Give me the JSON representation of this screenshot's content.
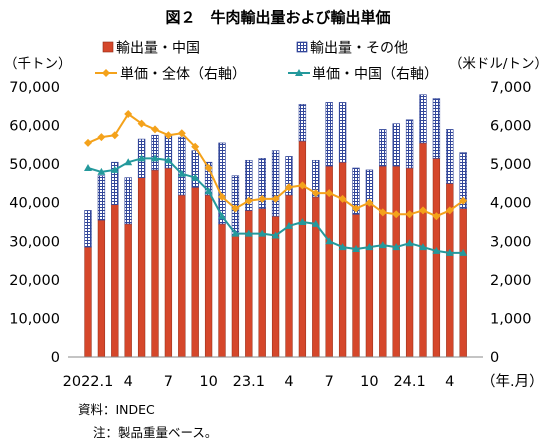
{
  "chart_data": {
    "type": "bar",
    "stacked": true,
    "title": "図２　牛肉輸出量および輸出単価",
    "categories": [
      "2022.1",
      "2022.2",
      "2022.3",
      "2022.4",
      "2022.5",
      "2022.6",
      "2022.7",
      "2022.8",
      "2022.9",
      "2022.10",
      "2022.11",
      "2022.12",
      "2023.1",
      "2023.2",
      "2023.3",
      "2023.4",
      "2023.5",
      "2023.6",
      "2023.7",
      "2023.8",
      "2023.9",
      "2023.10",
      "2023.11",
      "2023.12",
      "2024.1",
      "2024.2",
      "2024.3",
      "2024.4",
      "2024.5"
    ],
    "x_tick_labels": [
      "2022.1",
      "",
      "",
      "4",
      "",
      "",
      "7",
      "",
      "",
      "10",
      "",
      "",
      "23.1",
      "",
      "",
      "4",
      "",
      "",
      "7",
      "",
      "",
      "10",
      "",
      "",
      "24.1",
      "",
      "",
      "4",
      ""
    ],
    "xlabel": "（年.月）",
    "y_left": {
      "label": "（千トン）",
      "ylim": [
        0,
        70000
      ],
      "ticks": [
        0,
        10000,
        20000,
        30000,
        40000,
        50000,
        60000,
        70000
      ],
      "tick_labels": [
        "0",
        "10,000",
        "20,000",
        "30,000",
        "40,000",
        "50,000",
        "60,000",
        "70,000"
      ]
    },
    "y_right": {
      "label": "（米ドル/トン）",
      "ylim": [
        0,
        7000
      ],
      "ticks": [
        0,
        1000,
        2000,
        3000,
        4000,
        5000,
        6000,
        7000
      ],
      "tick_labels": [
        "0",
        "1,000",
        "2,000",
        "3,000",
        "4,000",
        "5,000",
        "6,000",
        "7,000"
      ]
    },
    "grid": false,
    "legend": "top",
    "series": [
      {
        "name": "輸出量・中国",
        "type": "bar",
        "axis": "left",
        "color": "#d5472b",
        "values": [
          28500,
          35500,
          39500,
          34500,
          46500,
          48500,
          49000,
          42000,
          44000,
          42000,
          34500,
          31500,
          38000,
          38500,
          36500,
          42000,
          56000,
          41500,
          49500,
          50500,
          37000,
          39500,
          49500,
          49500,
          49000,
          55500,
          51500,
          45000,
          38500
        ]
      },
      {
        "name": "輸出量・その他",
        "type": "bar",
        "axis": "left",
        "color": "#33479a",
        "values": [
          9500,
          11500,
          11000,
          12000,
          10000,
          9000,
          8500,
          15000,
          9500,
          8500,
          21000,
          15500,
          13000,
          13000,
          17000,
          10000,
          9500,
          9500,
          16500,
          15500,
          12000,
          9000,
          9500,
          11000,
          12500,
          12500,
          15500,
          14000,
          14500
        ]
      },
      {
        "name": "単価・全体（右軸）",
        "type": "line",
        "axis": "right",
        "color": "#f4a21b",
        "marker": "diamond",
        "values": [
          5550,
          5700,
          5750,
          6300,
          6050,
          5900,
          5750,
          5800,
          5450,
          4900,
          4150,
          3850,
          4050,
          4100,
          4100,
          4400,
          4450,
          4250,
          4250,
          4100,
          3850,
          4000,
          3750,
          3700,
          3700,
          3800,
          3650,
          3800,
          4050
        ]
      },
      {
        "name": "単価・中国（右軸）",
        "type": "line",
        "axis": "right",
        "color": "#24999c",
        "marker": "triangle",
        "values": [
          4900,
          4800,
          4850,
          5050,
          5150,
          5150,
          5100,
          4750,
          4650,
          4300,
          3650,
          3200,
          3200,
          3200,
          3150,
          3400,
          3500,
          3450,
          3000,
          2850,
          2800,
          2850,
          2900,
          2850,
          2950,
          2850,
          2750,
          2700,
          2700
        ]
      }
    ]
  },
  "footer": {
    "source": "資料：INDEC",
    "note": "注：製品重量ベース。"
  }
}
